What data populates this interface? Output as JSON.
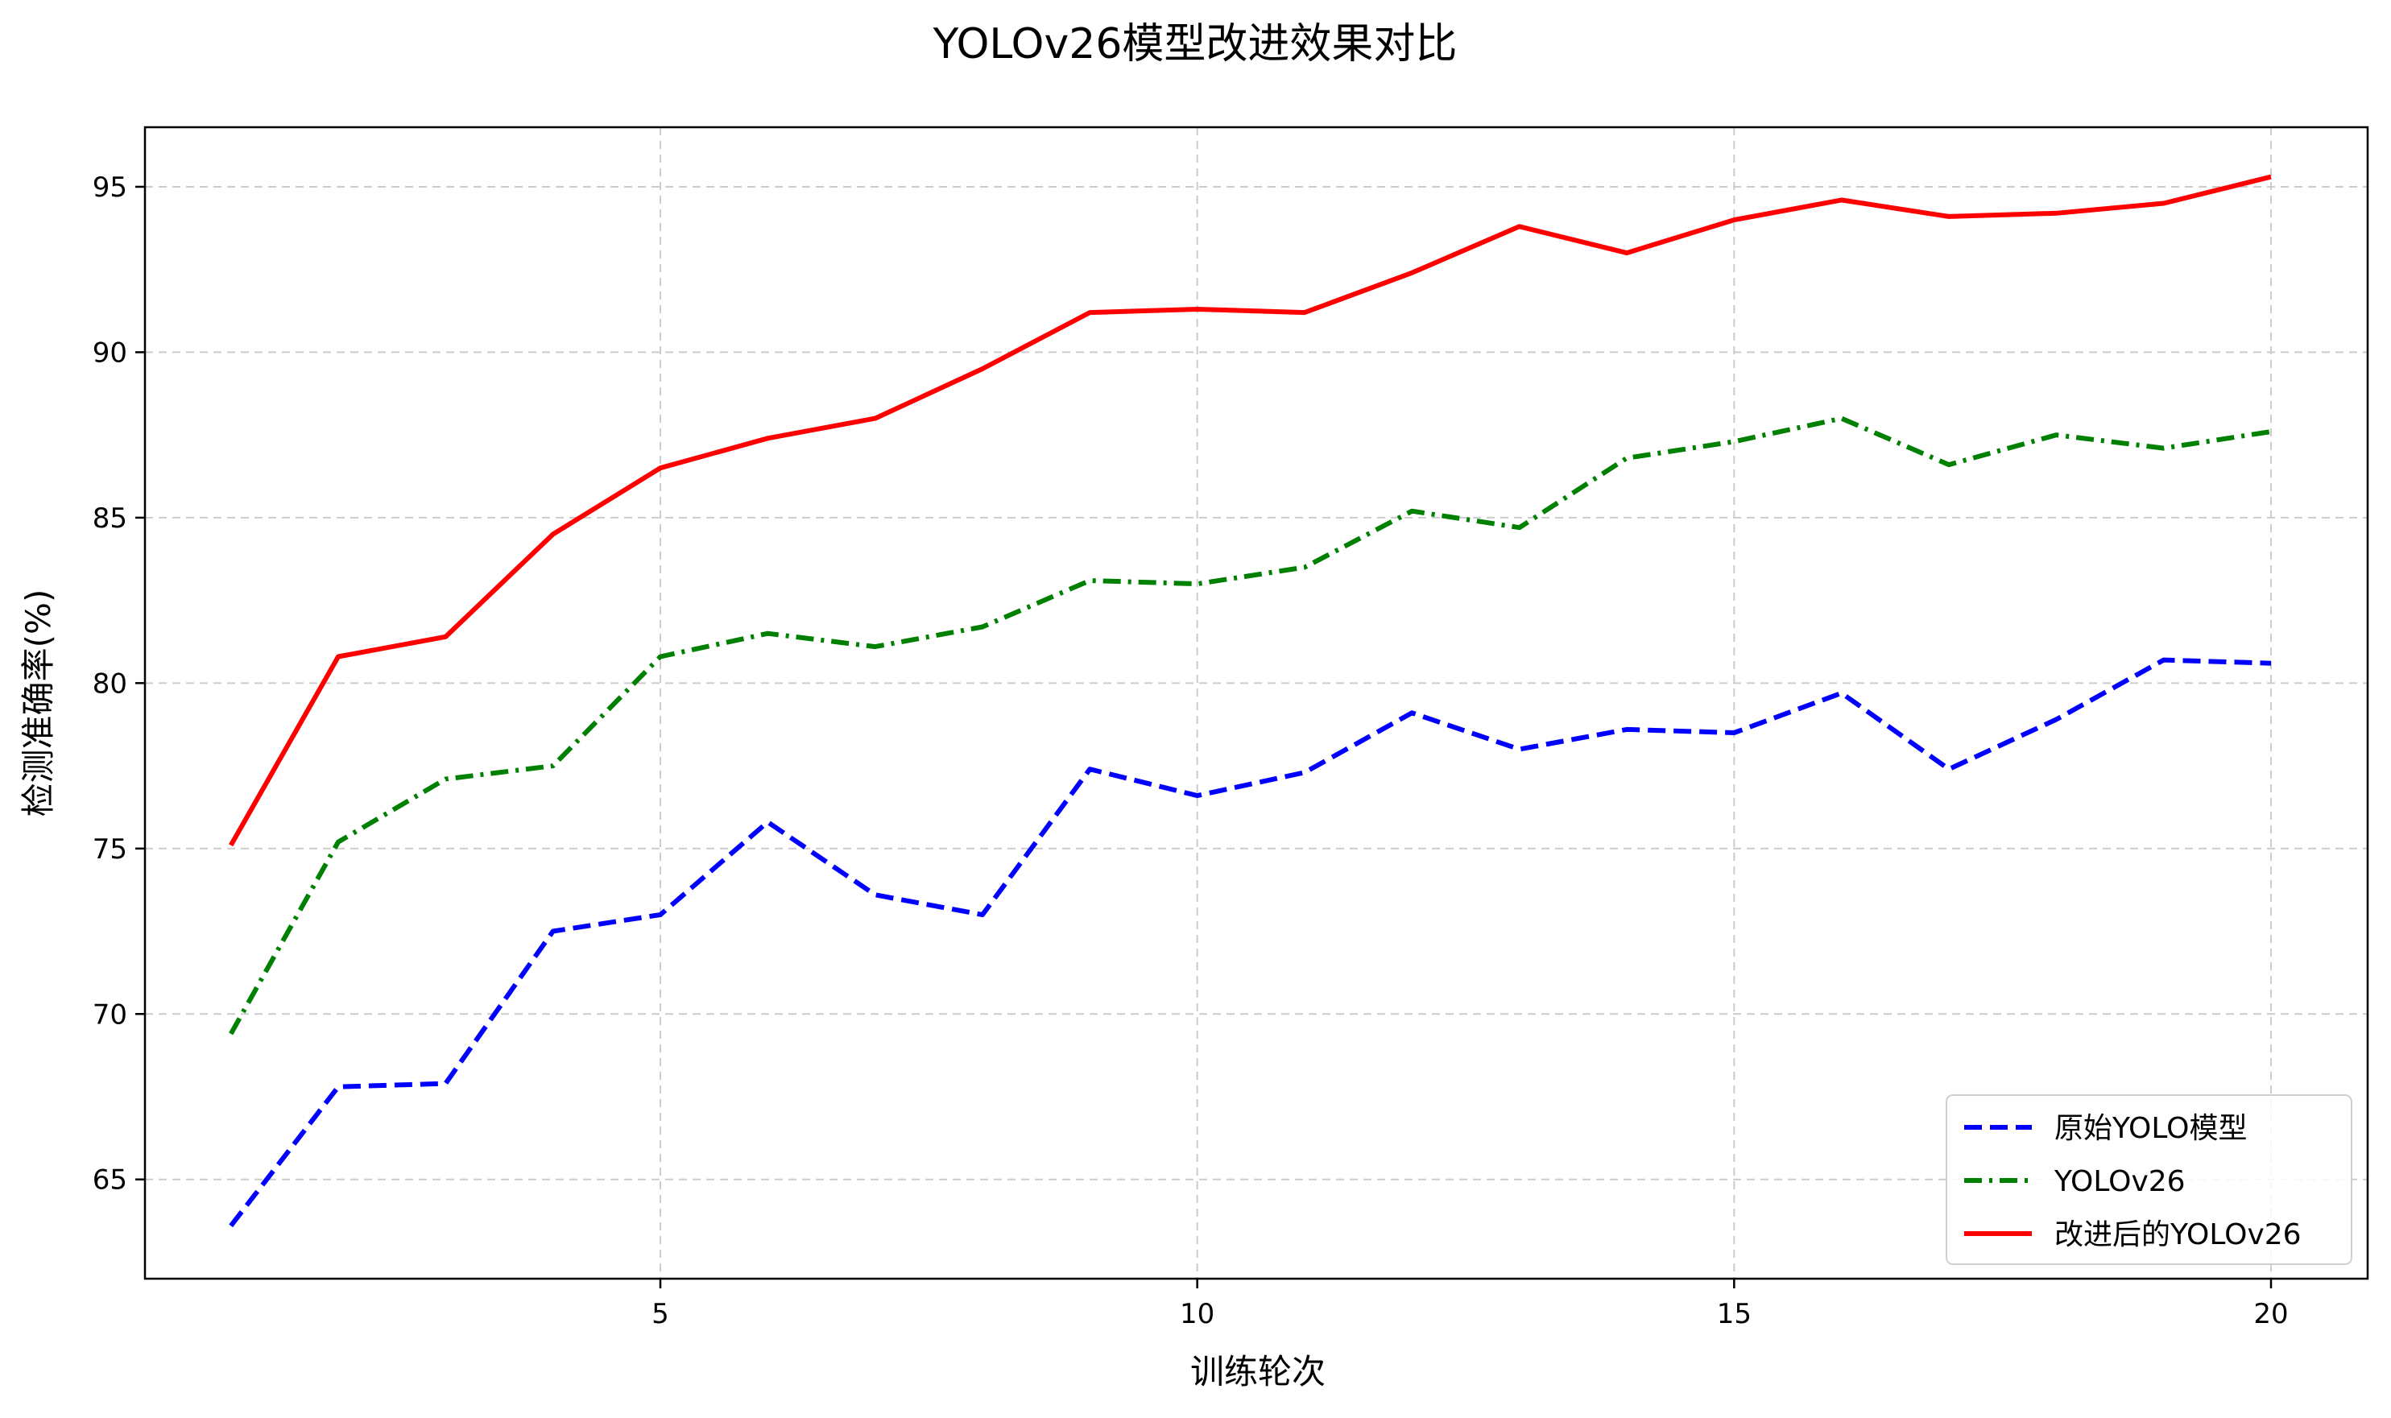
{
  "chart_data": {
    "type": "line",
    "title": "YOLOv26模型改进效果对比",
    "xlabel": "训练轮次",
    "ylabel": "检测准确率(%)",
    "xlim": [
      0.2,
      20.9
    ],
    "ylim": [
      62,
      96.8
    ],
    "x_ticks": [
      5,
      10,
      15,
      20
    ],
    "y_ticks": [
      65,
      70,
      75,
      80,
      85,
      90,
      95
    ],
    "grid": true,
    "legend_position": "lower-right",
    "x": [
      1,
      2,
      3,
      4,
      5,
      6,
      7,
      8,
      9,
      10,
      11,
      12,
      13,
      14,
      15,
      16,
      17,
      18,
      19,
      20
    ],
    "series": [
      {
        "name": "原始YOLO模型",
        "color": "#0000ff",
        "style": "dashed",
        "values": [
          63.6,
          67.8,
          67.9,
          72.5,
          73.0,
          75.8,
          73.6,
          73.0,
          77.4,
          76.6,
          77.3,
          79.1,
          78.0,
          78.6,
          78.5,
          79.7,
          77.4,
          78.9,
          80.7,
          80.6
        ]
      },
      {
        "name": "YOLOv26",
        "color": "#008000",
        "style": "dashdot",
        "values": [
          69.4,
          75.2,
          77.1,
          77.5,
          80.8,
          81.5,
          81.1,
          81.7,
          83.1,
          83.0,
          83.5,
          85.2,
          84.7,
          86.8,
          87.3,
          88.0,
          86.6,
          87.5,
          87.1,
          87.6
        ]
      },
      {
        "name": "改进后的YOLOv26",
        "color": "#ff0000",
        "style": "solid",
        "values": [
          75.1,
          80.8,
          81.4,
          84.5,
          86.5,
          87.4,
          88.0,
          89.5,
          91.2,
          91.3,
          91.2,
          92.4,
          93.8,
          93.0,
          94.0,
          94.6,
          94.1,
          94.2,
          94.5,
          95.3
        ]
      }
    ]
  }
}
